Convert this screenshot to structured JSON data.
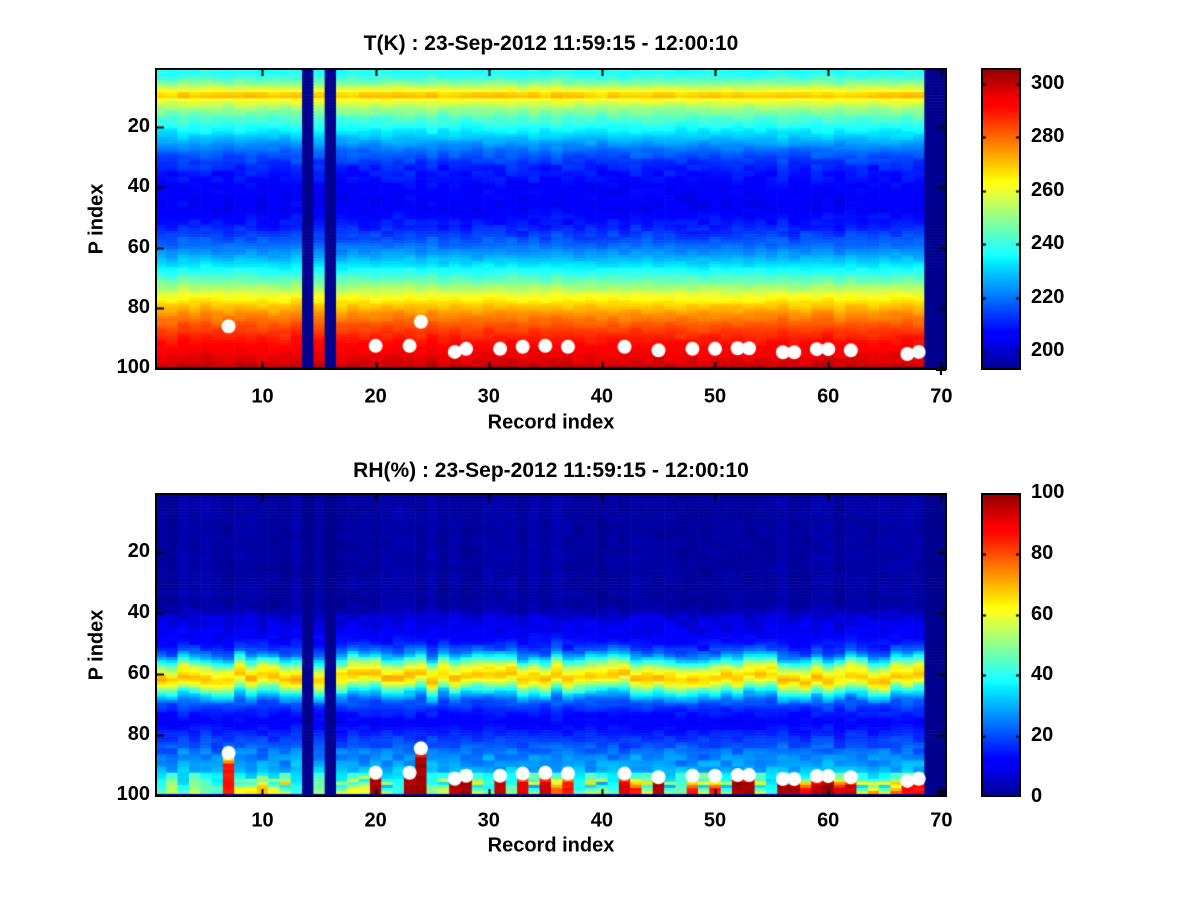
{
  "figure": {
    "background": "#ffffff",
    "frame_color": "#000000",
    "missing_color": "#00008f",
    "dot_color": "#ffffff",
    "text_color": "#000000"
  },
  "chart_data": [
    {
      "type": "heatmap",
      "title": "T(K) : 23-Sep-2012 11:59:15 - 12:00:10",
      "xlabel": "Record index",
      "ylabel": "P index",
      "x_ticks": [
        10,
        20,
        30,
        40,
        50,
        60,
        70
      ],
      "y_ticks": [
        20,
        40,
        60,
        80,
        100
      ],
      "x_range": [
        0.5,
        70.5
      ],
      "y_range": [
        0.5,
        100.5
      ],
      "y_axis_reversed": true,
      "n_records": 70,
      "n_levels": 100,
      "colormap": "jet",
      "color_range": [
        193,
        306
      ],
      "colorbar_ticks": [
        200,
        220,
        240,
        260,
        280,
        300
      ],
      "missing_records": [
        14,
        16,
        69,
        70
      ],
      "missing_bottom_row": 100,
      "profile": [
        [
          1,
          237
        ],
        [
          3,
          239
        ],
        [
          5,
          246
        ],
        [
          7,
          256
        ],
        [
          9,
          268
        ],
        [
          10,
          270
        ],
        [
          11,
          262
        ],
        [
          14,
          251
        ],
        [
          17,
          243
        ],
        [
          20,
          237
        ],
        [
          24,
          228
        ],
        [
          28,
          219
        ],
        [
          33,
          211
        ],
        [
          40,
          206
        ],
        [
          47,
          205
        ],
        [
          53,
          210
        ],
        [
          58,
          217
        ],
        [
          62,
          224
        ],
        [
          66,
          233
        ],
        [
          70,
          243
        ],
        [
          73,
          252
        ],
        [
          76,
          261
        ],
        [
          79,
          269
        ],
        [
          82,
          276
        ],
        [
          86,
          283
        ],
        [
          90,
          289
        ],
        [
          94,
          294
        ],
        [
          97,
          297
        ],
        [
          99,
          299
        ]
      ],
      "jitter_amplitude": 2.2,
      "white_dots": [
        [
          7,
          86
        ],
        [
          20,
          92.5
        ],
        [
          23,
          92.5
        ],
        [
          24,
          84.5
        ],
        [
          27,
          94.5
        ],
        [
          28,
          93.5
        ],
        [
          31,
          93.5
        ],
        [
          33,
          92.8
        ],
        [
          35,
          92.5
        ],
        [
          37,
          92.8
        ],
        [
          42,
          92.8
        ],
        [
          45,
          94
        ],
        [
          48,
          93.5
        ],
        [
          50,
          93.5
        ],
        [
          52,
          93.3
        ],
        [
          53,
          93.3
        ],
        [
          56,
          94.6
        ],
        [
          57,
          94.6
        ],
        [
          59,
          93.6
        ],
        [
          60,
          93.6
        ],
        [
          62,
          94
        ],
        [
          67,
          95.2
        ],
        [
          68,
          94.5
        ]
      ],
      "plus_marker": [
        69.9,
        100.3
      ]
    },
    {
      "type": "heatmap",
      "title": "RH(%) : 23-Sep-2012 11:59:15 - 12:00:10",
      "xlabel": "Record index",
      "ylabel": "P index",
      "x_ticks": [
        10,
        20,
        30,
        40,
        50,
        60,
        70
      ],
      "y_ticks": [
        20,
        40,
        60,
        80,
        100
      ],
      "x_range": [
        0.5,
        70.5
      ],
      "y_range": [
        0.5,
        100.5
      ],
      "y_axis_reversed": true,
      "n_records": 70,
      "n_levels": 100,
      "colormap": "jet",
      "color_range": [
        0,
        100
      ],
      "colorbar_ticks": [
        0,
        20,
        40,
        60,
        80,
        100
      ],
      "missing_records": [
        14,
        16,
        69,
        70
      ],
      "missing_bottom_row": 100,
      "profile": [
        [
          1,
          2
        ],
        [
          38,
          2
        ],
        [
          42,
          8
        ],
        [
          46,
          10
        ],
        [
          50,
          14
        ],
        [
          53,
          22
        ],
        [
          55,
          35
        ],
        [
          57,
          50
        ],
        [
          59,
          62
        ],
        [
          60,
          65
        ],
        [
          61,
          69
        ],
        [
          62,
          66
        ],
        [
          63,
          60
        ],
        [
          65,
          45
        ],
        [
          67,
          32
        ],
        [
          69,
          22
        ],
        [
          72,
          16
        ],
        [
          76,
          11
        ],
        [
          80,
          16
        ],
        [
          83,
          20
        ],
        [
          86,
          24
        ],
        [
          90,
          28
        ],
        [
          94,
          33
        ],
        [
          97,
          38
        ],
        [
          99,
          42
        ]
      ],
      "jitter_amplitude": 3,
      "band_wiggle": {
        "p_min": 48,
        "p_max": 70,
        "amplitude": 1.5
      },
      "bottom_spikes": [
        [
          7,
          88,
          85
        ],
        [
          8,
          96,
          60
        ],
        [
          9,
          96,
          62
        ],
        [
          10,
          95,
          68
        ],
        [
          11,
          96,
          58
        ],
        [
          12,
          97,
          55
        ],
        [
          17,
          97,
          58
        ],
        [
          18,
          96,
          62
        ],
        [
          19,
          95,
          58
        ],
        [
          20,
          93,
          98
        ],
        [
          21,
          97,
          50
        ],
        [
          23,
          93,
          98
        ],
        [
          24,
          86,
          98
        ],
        [
          26,
          96,
          55
        ],
        [
          27,
          94,
          96
        ],
        [
          28,
          93,
          98
        ],
        [
          29,
          97,
          55
        ],
        [
          31,
          94,
          96
        ],
        [
          33,
          94,
          90
        ],
        [
          34,
          97,
          50
        ],
        [
          35,
          94,
          94
        ],
        [
          36,
          96,
          78
        ],
        [
          37,
          94,
          85
        ],
        [
          39,
          97,
          55
        ],
        [
          40,
          96,
          50
        ],
        [
          42,
          94,
          92
        ],
        [
          43,
          96,
          85
        ],
        [
          44,
          97,
          58
        ],
        [
          45,
          94,
          98
        ],
        [
          46,
          97,
          50
        ],
        [
          48,
          96,
          85
        ],
        [
          49,
          97,
          55
        ],
        [
          50,
          96,
          85
        ],
        [
          51,
          97,
          50
        ],
        [
          52,
          94,
          98
        ],
        [
          53,
          94,
          98
        ],
        [
          54,
          97,
          55
        ],
        [
          56,
          95,
          98
        ],
        [
          57,
          95,
          98
        ],
        [
          58,
          96,
          88
        ],
        [
          59,
          95,
          98
        ],
        [
          60,
          94,
          98
        ],
        [
          61,
          96,
          92
        ],
        [
          62,
          95,
          94
        ],
        [
          63,
          97,
          55
        ],
        [
          64,
          97,
          70
        ],
        [
          65,
          97,
          55
        ],
        [
          66,
          97,
          78
        ],
        [
          67,
          95,
          88
        ],
        [
          68,
          95,
          85
        ]
      ],
      "white_dots": [
        [
          7,
          86
        ],
        [
          20,
          92.5
        ],
        [
          23,
          92.5
        ],
        [
          24,
          84.5
        ],
        [
          27,
          94.5
        ],
        [
          28,
          93.5
        ],
        [
          31,
          93.5
        ],
        [
          33,
          92.8
        ],
        [
          35,
          92.5
        ],
        [
          37,
          92.8
        ],
        [
          42,
          92.8
        ],
        [
          45,
          94
        ],
        [
          48,
          93.5
        ],
        [
          50,
          93.5
        ],
        [
          52,
          93.3
        ],
        [
          53,
          93.3
        ],
        [
          56,
          94.6
        ],
        [
          57,
          94.6
        ],
        [
          59,
          93.6
        ],
        [
          60,
          93.6
        ],
        [
          62,
          94
        ],
        [
          67,
          95.2
        ],
        [
          68,
          94.5
        ]
      ],
      "plus_marker": [
        69.9,
        100.3
      ]
    }
  ]
}
